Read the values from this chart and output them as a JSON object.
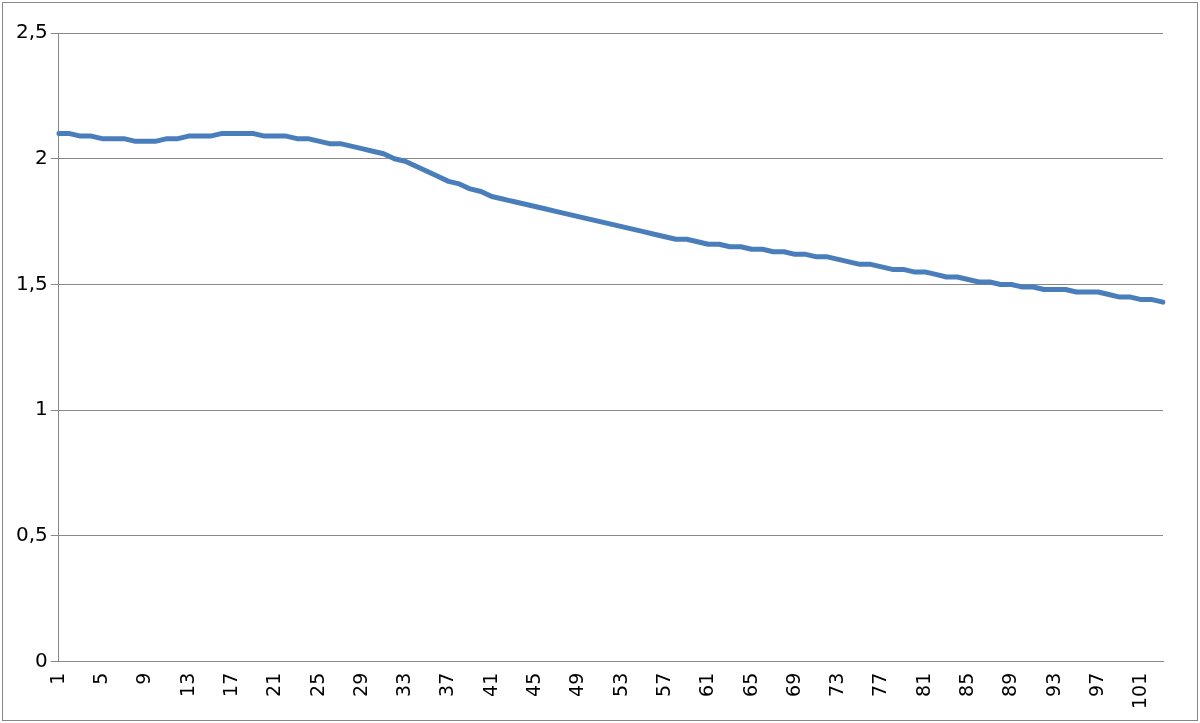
{
  "chart_data": {
    "type": "line",
    "categories": [
      "1",
      null,
      null,
      null,
      "5",
      null,
      null,
      null,
      "9",
      null,
      null,
      null,
      "13",
      null,
      null,
      null,
      "17",
      null,
      null,
      null,
      "21",
      null,
      null,
      null,
      "25",
      null,
      null,
      null,
      "29",
      null,
      null,
      null,
      "33",
      null,
      null,
      null,
      "37",
      null,
      null,
      null,
      "41",
      null,
      null,
      null,
      "45",
      null,
      null,
      null,
      "49",
      null,
      null,
      null,
      "53",
      null,
      null,
      null,
      "57",
      null,
      null,
      null,
      "61",
      null,
      null,
      null,
      "65",
      null,
      null,
      null,
      "69",
      null,
      null,
      null,
      "73",
      null,
      null,
      null,
      "77",
      null,
      null,
      null,
      "81",
      null,
      null,
      null,
      "85",
      null,
      null,
      null,
      "89",
      null,
      null,
      null,
      "93",
      null,
      null,
      null,
      "97",
      null,
      null,
      null,
      "101",
      null,
      null
    ],
    "series": [
      {
        "color": "#4a7ebb",
        "values": [
          2.1,
          2.1,
          2.09,
          2.09,
          2.08,
          2.08,
          2.08,
          2.07,
          2.07,
          2.07,
          2.08,
          2.08,
          2.09,
          2.09,
          2.09,
          2.1,
          2.1,
          2.1,
          2.1,
          2.09,
          2.09,
          2.09,
          2.08,
          2.08,
          2.07,
          2.06,
          2.06,
          2.05,
          2.04,
          2.03,
          2.02,
          2.0,
          1.99,
          1.97,
          1.95,
          1.93,
          1.91,
          1.9,
          1.88,
          1.87,
          1.85,
          1.84,
          1.83,
          1.82,
          1.81,
          1.8,
          1.79,
          1.78,
          1.77,
          1.76,
          1.75,
          1.74,
          1.73,
          1.72,
          1.71,
          1.7,
          1.69,
          1.68,
          1.68,
          1.67,
          1.66,
          1.66,
          1.65,
          1.65,
          1.64,
          1.64,
          1.63,
          1.63,
          1.62,
          1.62,
          1.61,
          1.61,
          1.6,
          1.59,
          1.58,
          1.58,
          1.57,
          1.56,
          1.56,
          1.55,
          1.55,
          1.54,
          1.53,
          1.53,
          1.52,
          1.51,
          1.51,
          1.5,
          1.5,
          1.49,
          1.49,
          1.48,
          1.48,
          1.48,
          1.47,
          1.47,
          1.47,
          1.46,
          1.45,
          1.45,
          1.44,
          1.44,
          1.43
        ]
      }
    ],
    "ylim": [
      0,
      2.5
    ],
    "yticks": [
      {
        "value": 0,
        "label": "0"
      },
      {
        "value": 0.5,
        "label": "0,5"
      },
      {
        "value": 1,
        "label": "1"
      },
      {
        "value": 1.5,
        "label": "1,5"
      },
      {
        "value": 2,
        "label": "2"
      },
      {
        "value": 2.5,
        "label": "2,5"
      }
    ],
    "grid": "y",
    "legend": false,
    "marker": "none",
    "line_style": "solid"
  }
}
